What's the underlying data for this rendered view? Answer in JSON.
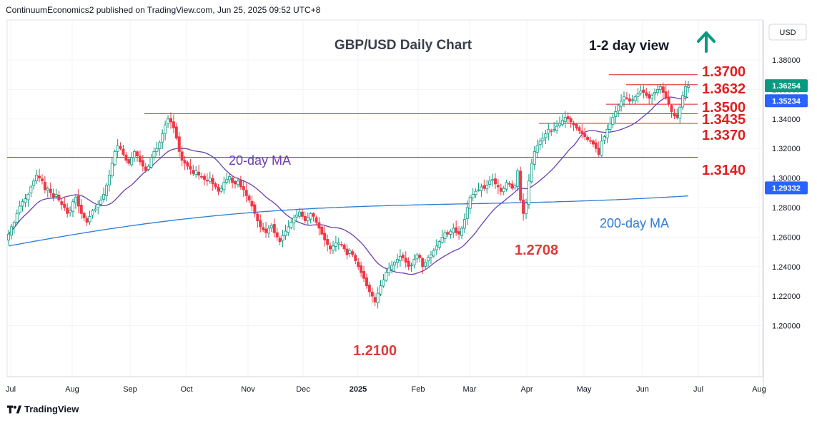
{
  "header": {
    "published_text": "ContinuumEconomics2 published on TradingView.com, Jun 25, 2025 09:52 UTC+8"
  },
  "footer": {
    "brand": "TradingView"
  },
  "chart_data": {
    "type": "candlestick",
    "title": "GBP/USD Daily Chart",
    "view_label": "1-2 day view",
    "view_direction": "up",
    "currency": "USD",
    "x_tick_labels": [
      "Jul",
      "Aug",
      "Sep",
      "Oct",
      "Nov",
      "Dec",
      "2025",
      "Feb",
      "Mar",
      "Apr",
      "May",
      "Jun",
      "Jul",
      "Aug"
    ],
    "y_tick_labels": [
      "1.38000",
      "1.36000",
      "1.34000",
      "1.32000",
      "1.30000",
      "1.28000",
      "1.26000",
      "1.24000",
      "1.22000",
      "1.20000"
    ],
    "ylim": [
      1.19,
      1.4
    ],
    "price_tags": [
      {
        "label": "1.36254",
        "value": 1.36254,
        "color": "#089981"
      },
      {
        "label": "1.35234",
        "value": 1.35234,
        "color": "#2962ff"
      },
      {
        "label": "1.29332",
        "value": 1.29332,
        "color": "#2962ff"
      }
    ],
    "levels": [
      {
        "label": "1.3700",
        "value": 1.37,
        "from": "May 28"
      },
      {
        "label": "1.3632",
        "value": 1.3632,
        "from": "May 26"
      },
      {
        "label": "1.3500",
        "value": 1.35,
        "from": "May 22"
      },
      {
        "label": "1.3435",
        "value": 1.3435,
        "from": "Sep 12"
      },
      {
        "label": "1.3370",
        "value": 1.337,
        "from": "Apr 10"
      },
      {
        "label": "1.3140",
        "value": 1.314,
        "from": "Jun 26 2024"
      }
    ],
    "annotations": [
      {
        "text": "20-day MA",
        "color": "#6a3fb0"
      },
      {
        "text": "200-day MA",
        "color": "#2e7bd6"
      },
      {
        "text": "1.2708",
        "value": 1.2708,
        "color": "#e03a3a"
      },
      {
        "text": "1.2100",
        "value": 1.21,
        "color": "#e03a3a"
      }
    ],
    "colors": {
      "up": "#089981",
      "down": "#f23645",
      "level": "#e01f1f",
      "ma20": "#6a3fb0",
      "ma200": "#2e7bd6",
      "grid": "#f0f3fa"
    },
    "closes": [
      1.262,
      1.267,
      1.27,
      1.276,
      1.281,
      1.284,
      1.286,
      1.289,
      1.294,
      1.298,
      1.302,
      1.3,
      1.298,
      1.292,
      1.293,
      1.29,
      1.287,
      1.289,
      1.285,
      1.282,
      1.28,
      1.276,
      1.278,
      1.284,
      1.287,
      1.281,
      1.276,
      1.273,
      1.27,
      1.274,
      1.278,
      1.279,
      1.282,
      1.285,
      1.289,
      1.295,
      1.302,
      1.31,
      1.318,
      1.322,
      1.32,
      1.316,
      1.312,
      1.31,
      1.314,
      1.318,
      1.315,
      1.311,
      1.308,
      1.305,
      1.308,
      1.314,
      1.318,
      1.32,
      1.324,
      1.33,
      1.336,
      1.34,
      1.338,
      1.334,
      1.327,
      1.318,
      1.312,
      1.31,
      1.308,
      1.306,
      1.303,
      1.305,
      1.302,
      1.301,
      1.299,
      1.298,
      1.3,
      1.296,
      1.294,
      1.291,
      1.293,
      1.297,
      1.299,
      1.301,
      1.297,
      1.296,
      1.298,
      1.294,
      1.292,
      1.288,
      1.285,
      1.281,
      1.276,
      1.271,
      1.267,
      1.265,
      1.263,
      1.266,
      1.268,
      1.263,
      1.26,
      1.257,
      1.261,
      1.264,
      1.267,
      1.27,
      1.273,
      1.275,
      1.277,
      1.274,
      1.271,
      1.273,
      1.276,
      1.274,
      1.27,
      1.266,
      1.262,
      1.258,
      1.255,
      1.252,
      1.254,
      1.256,
      1.256,
      1.255,
      1.252,
      1.248,
      1.251,
      1.248,
      1.244,
      1.24,
      1.236,
      1.232,
      1.227,
      1.223,
      1.22,
      1.216,
      1.222,
      1.227,
      1.231,
      1.236,
      1.239,
      1.241,
      1.243,
      1.245,
      1.247,
      1.246,
      1.243,
      1.24,
      1.241,
      1.245,
      1.248,
      1.246,
      1.24,
      1.243,
      1.246,
      1.248,
      1.251,
      1.254,
      1.257,
      1.26,
      1.263,
      1.262,
      1.264,
      1.266,
      1.263,
      1.262,
      1.266,
      1.272,
      1.28,
      1.287,
      1.289,
      1.291,
      1.292,
      1.294,
      1.293,
      1.295,
      1.298,
      1.299,
      1.296,
      1.294,
      1.291,
      1.293,
      1.297,
      1.296,
      1.293,
      1.295,
      1.305,
      1.285,
      1.276,
      1.283,
      1.298,
      1.31,
      1.318,
      1.322,
      1.325,
      1.327,
      1.33,
      1.333,
      1.332,
      1.333,
      1.335,
      1.337,
      1.339,
      1.341,
      1.34,
      1.338,
      1.336,
      1.334,
      1.332,
      1.33,
      1.328,
      1.326,
      1.325,
      1.323,
      1.32,
      1.316,
      1.325,
      1.328,
      1.333,
      1.337,
      1.341,
      1.345,
      1.349,
      1.352,
      1.355,
      1.354,
      1.352,
      1.353,
      1.355,
      1.357,
      1.359,
      1.358,
      1.356,
      1.354,
      1.356,
      1.358,
      1.36,
      1.362,
      1.358,
      1.354,
      1.35,
      1.345,
      1.342,
      1.341,
      1.348,
      1.356,
      1.362,
      1.3625
    ]
  }
}
